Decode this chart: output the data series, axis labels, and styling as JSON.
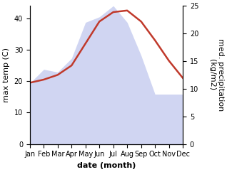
{
  "months": [
    "Jan",
    "Feb",
    "Mar",
    "Apr",
    "May",
    "Jun",
    "Jul",
    "Aug",
    "Sep",
    "Oct",
    "Nov",
    "Dec"
  ],
  "month_indices": [
    1,
    2,
    3,
    4,
    5,
    6,
    7,
    8,
    9,
    10,
    11,
    12
  ],
  "temp": [
    19.5,
    20.5,
    22,
    25,
    32,
    39,
    42,
    42.5,
    39,
    33,
    26.5,
    21
  ],
  "precip": [
    11,
    13.5,
    13,
    15.5,
    22,
    23,
    25,
    22,
    16,
    9,
    9,
    9
  ],
  "temp_color": "#c0392b",
  "precip_color": "#aab4e8",
  "precip_alpha": 0.55,
  "temp_linewidth": 1.8,
  "xlabel": "date (month)",
  "ylabel_left": "max temp (C)",
  "ylabel_right": "med. precipitation\n(kg/m2)",
  "ylim_left": [
    0,
    44
  ],
  "ylim_right": [
    0,
    25
  ],
  "yticks_left": [
    0,
    10,
    20,
    30,
    40
  ],
  "yticks_right": [
    0,
    5,
    10,
    15,
    20,
    25
  ],
  "background_color": "#ffffff",
  "xlabel_fontsize": 8,
  "ylabel_fontsize": 8,
  "tick_fontsize": 7,
  "figwidth": 3.18,
  "figheight": 2.42,
  "dpi": 100
}
